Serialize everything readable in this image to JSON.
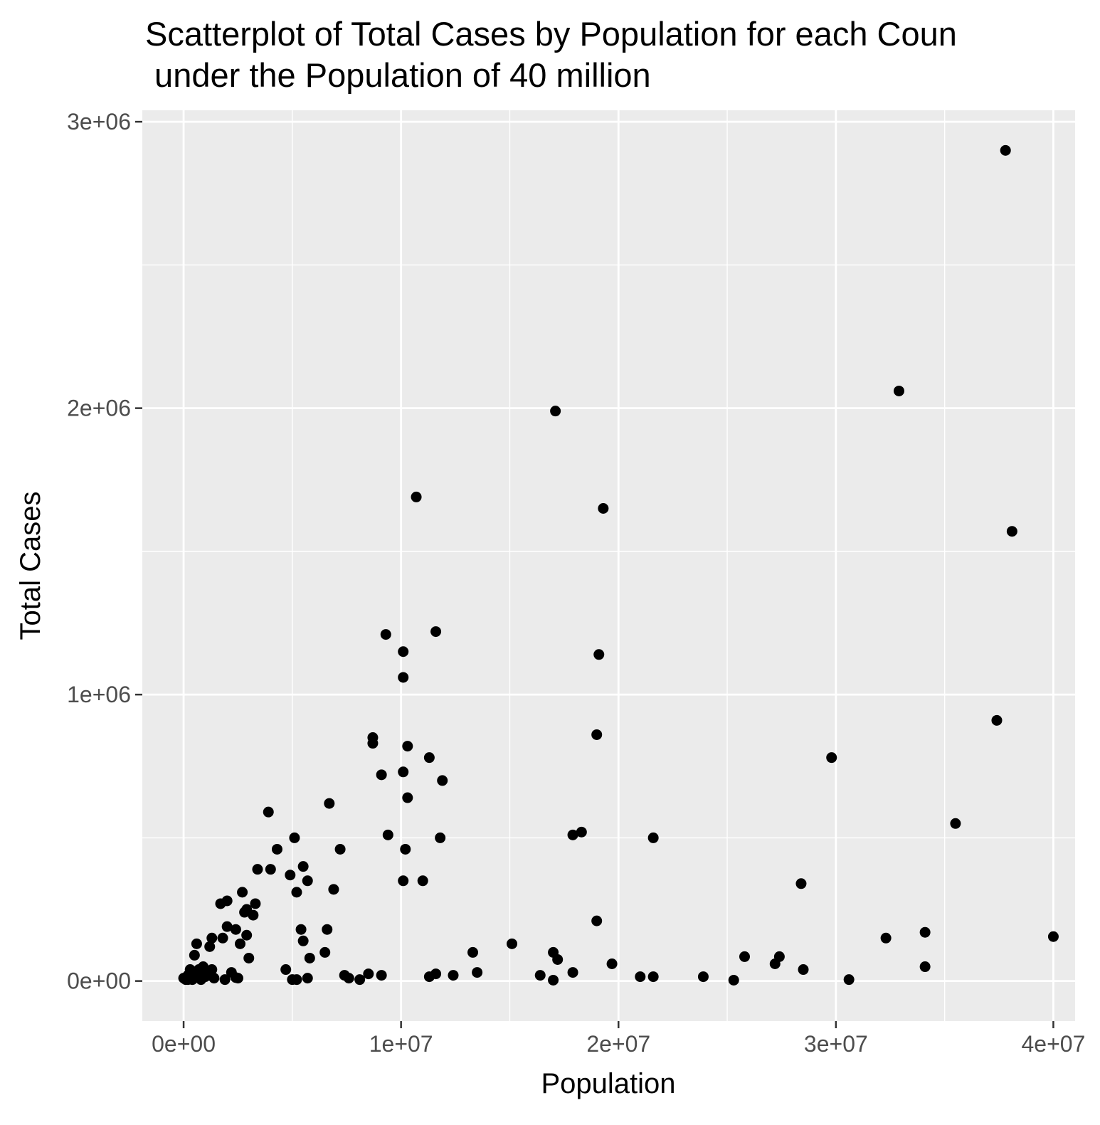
{
  "chart_data": {
    "type": "scatter",
    "title_lines": [
      "Scatterplot of Total Cases by Population for each Coun",
      " under the Population of 40 million"
    ],
    "xlabel": "Population",
    "ylabel": "Total Cases",
    "xlim": [
      -1900000,
      41000000
    ],
    "ylim": [
      -140000,
      3040000
    ],
    "x_ticks": [
      {
        "value": 0,
        "label": "0e+00"
      },
      {
        "value": 10000000,
        "label": "1e+07"
      },
      {
        "value": 20000000,
        "label": "2e+07"
      },
      {
        "value": 30000000,
        "label": "3e+07"
      },
      {
        "value": 40000000,
        "label": "4e+07"
      }
    ],
    "y_ticks": [
      {
        "value": 0,
        "label": "0e+00"
      },
      {
        "value": 1000000,
        "label": "1e+06"
      },
      {
        "value": 2000000,
        "label": "2e+06"
      },
      {
        "value": 3000000,
        "label": "3e+06"
      }
    ],
    "x_minor_ticks": [
      5000000,
      15000000,
      25000000,
      35000000
    ],
    "y_minor_ticks": [
      500000,
      1500000,
      2500000
    ],
    "grid": true,
    "legend": "none",
    "colors": {
      "panel": "#ebebeb",
      "grid": "#ffffff",
      "point": "#000000",
      "tick": "#333333"
    },
    "points": [
      [
        37800000,
        2900000
      ],
      [
        32900000,
        2060000
      ],
      [
        17100000,
        1990000
      ],
      [
        10700000,
        1690000
      ],
      [
        19300000,
        1650000
      ],
      [
        38100000,
        1570000
      ],
      [
        9300000,
        1210000
      ],
      [
        11600000,
        1220000
      ],
      [
        10100000,
        1150000
      ],
      [
        19100000,
        1140000
      ],
      [
        10100000,
        1060000
      ],
      [
        37400000,
        910000
      ],
      [
        8700000,
        850000
      ],
      [
        19000000,
        860000
      ],
      [
        8700000,
        830000
      ],
      [
        10300000,
        820000
      ],
      [
        11300000,
        780000
      ],
      [
        29800000,
        780000
      ],
      [
        9100000,
        720000
      ],
      [
        10100000,
        730000
      ],
      [
        11900000,
        700000
      ],
      [
        10300000,
        640000
      ],
      [
        6700000,
        620000
      ],
      [
        3900000,
        590000
      ],
      [
        35500000,
        550000
      ],
      [
        18300000,
        520000
      ],
      [
        17900000,
        510000
      ],
      [
        9400000,
        510000
      ],
      [
        5100000,
        500000
      ],
      [
        11800000,
        500000
      ],
      [
        21600000,
        500000
      ],
      [
        4300000,
        460000
      ],
      [
        7200000,
        460000
      ],
      [
        10200000,
        460000
      ],
      [
        3400000,
        390000
      ],
      [
        4000000,
        390000
      ],
      [
        5500000,
        400000
      ],
      [
        4900000,
        370000
      ],
      [
        10100000,
        350000
      ],
      [
        11000000,
        350000
      ],
      [
        5700000,
        350000
      ],
      [
        28400000,
        340000
      ],
      [
        6900000,
        320000
      ],
      [
        2700000,
        310000
      ],
      [
        5200000,
        310000
      ],
      [
        2000000,
        280000
      ],
      [
        1700000,
        270000
      ],
      [
        3300000,
        270000
      ],
      [
        2900000,
        250000
      ],
      [
        2800000,
        240000
      ],
      [
        3200000,
        230000
      ],
      [
        19000000,
        210000
      ],
      [
        2000000,
        190000
      ],
      [
        2400000,
        180000
      ],
      [
        5400000,
        180000
      ],
      [
        6600000,
        180000
      ],
      [
        34100000,
        170000
      ],
      [
        2900000,
        160000
      ],
      [
        1300000,
        150000
      ],
      [
        1800000,
        150000
      ],
      [
        32300000,
        150000
      ],
      [
        40000000,
        155000
      ],
      [
        5500000,
        140000
      ],
      [
        600000,
        130000
      ],
      [
        1200000,
        120000
      ],
      [
        2600000,
        130000
      ],
      [
        15100000,
        130000
      ],
      [
        6500000,
        100000
      ],
      [
        13300000,
        100000
      ],
      [
        17000000,
        100000
      ],
      [
        500000,
        90000
      ],
      [
        3000000,
        80000
      ],
      [
        5800000,
        80000
      ],
      [
        17200000,
        75000
      ],
      [
        25800000,
        85000
      ],
      [
        27400000,
        85000
      ],
      [
        19700000,
        60000
      ],
      [
        27200000,
        60000
      ],
      [
        34100000,
        50000
      ],
      [
        1300000,
        40000
      ],
      [
        900000,
        50000
      ],
      [
        700000,
        40000
      ],
      [
        300000,
        40000
      ],
      [
        4700000,
        40000
      ],
      [
        28500000,
        40000
      ],
      [
        13500000,
        30000
      ],
      [
        17900000,
        30000
      ],
      [
        1100000,
        30000
      ],
      [
        400000,
        20000
      ],
      [
        2200000,
        30000
      ],
      [
        8500000,
        25000
      ],
      [
        11600000,
        25000
      ],
      [
        12400000,
        20000
      ],
      [
        16400000,
        20000
      ],
      [
        7400000,
        20000
      ],
      [
        9100000,
        20000
      ],
      [
        21000000,
        15000
      ],
      [
        21600000,
        15000
      ],
      [
        23900000,
        15000
      ],
      [
        11300000,
        15000
      ],
      [
        1400000,
        10000
      ],
      [
        2500000,
        10000
      ],
      [
        5700000,
        10000
      ],
      [
        7600000,
        10000
      ],
      [
        0,
        10000
      ],
      [
        100000,
        5000
      ],
      [
        200000,
        20000
      ],
      [
        800000,
        5000
      ],
      [
        1000000,
        15000
      ],
      [
        1900000,
        5000
      ],
      [
        5000000,
        5000
      ],
      [
        5200000,
        5000
      ],
      [
        8100000,
        5000
      ],
      [
        17000000,
        3000
      ],
      [
        25300000,
        3000
      ],
      [
        30600000,
        5000
      ],
      [
        400000,
        5000
      ],
      [
        600000,
        15000
      ],
      [
        200000,
        5000
      ],
      [
        2400000,
        12000
      ]
    ]
  }
}
